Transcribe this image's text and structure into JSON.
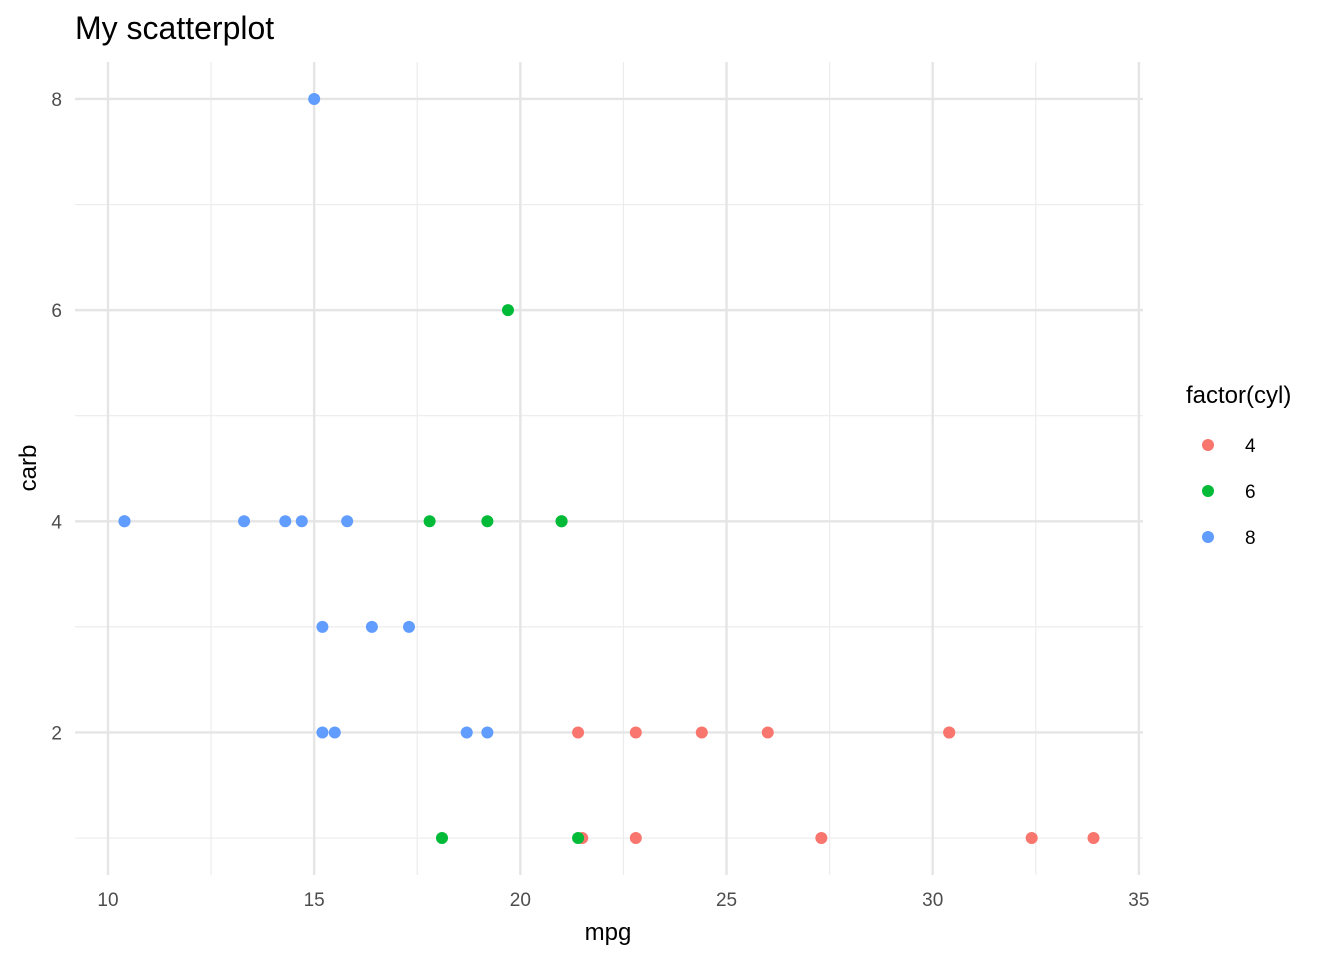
{
  "chart_data": {
    "type": "scatter",
    "title": "My scatterplot",
    "xlabel": "mpg",
    "ylabel": "carb",
    "xlim": [
      9.2,
      35.1
    ],
    "ylim": [
      0.65,
      8.35
    ],
    "x_ticks": [
      10,
      15,
      20,
      25,
      30,
      35
    ],
    "y_ticks": [
      2,
      4,
      6,
      8
    ],
    "grid": true,
    "legend": {
      "title": "factor(cyl)",
      "placement": "right"
    },
    "series": [
      {
        "name": "4",
        "color": "#F8766D",
        "points": [
          {
            "x": 22.8,
            "y": 1
          },
          {
            "x": 24.4,
            "y": 2
          },
          {
            "x": 22.8,
            "y": 2
          },
          {
            "x": 32.4,
            "y": 1
          },
          {
            "x": 30.4,
            "y": 2
          },
          {
            "x": 33.9,
            "y": 1
          },
          {
            "x": 21.5,
            "y": 1
          },
          {
            "x": 27.3,
            "y": 1
          },
          {
            "x": 26.0,
            "y": 2
          },
          {
            "x": 30.4,
            "y": 2
          },
          {
            "x": 21.4,
            "y": 2
          }
        ]
      },
      {
        "name": "6",
        "color": "#00BA38",
        "points": [
          {
            "x": 21.0,
            "y": 4
          },
          {
            "x": 21.0,
            "y": 4
          },
          {
            "x": 21.4,
            "y": 1
          },
          {
            "x": 18.1,
            "y": 1
          },
          {
            "x": 19.2,
            "y": 4
          },
          {
            "x": 17.8,
            "y": 4
          },
          {
            "x": 19.7,
            "y": 6
          }
        ]
      },
      {
        "name": "8",
        "color": "#619CFF",
        "points": [
          {
            "x": 18.7,
            "y": 2
          },
          {
            "x": 14.3,
            "y": 4
          },
          {
            "x": 16.4,
            "y": 3
          },
          {
            "x": 17.3,
            "y": 3
          },
          {
            "x": 15.2,
            "y": 3
          },
          {
            "x": 10.4,
            "y": 4
          },
          {
            "x": 10.4,
            "y": 4
          },
          {
            "x": 14.7,
            "y": 4
          },
          {
            "x": 15.5,
            "y": 2
          },
          {
            "x": 15.2,
            "y": 2
          },
          {
            "x": 13.3,
            "y": 4
          },
          {
            "x": 19.2,
            "y": 2
          },
          {
            "x": 15.8,
            "y": 4
          },
          {
            "x": 15.0,
            "y": 8
          }
        ]
      }
    ]
  }
}
